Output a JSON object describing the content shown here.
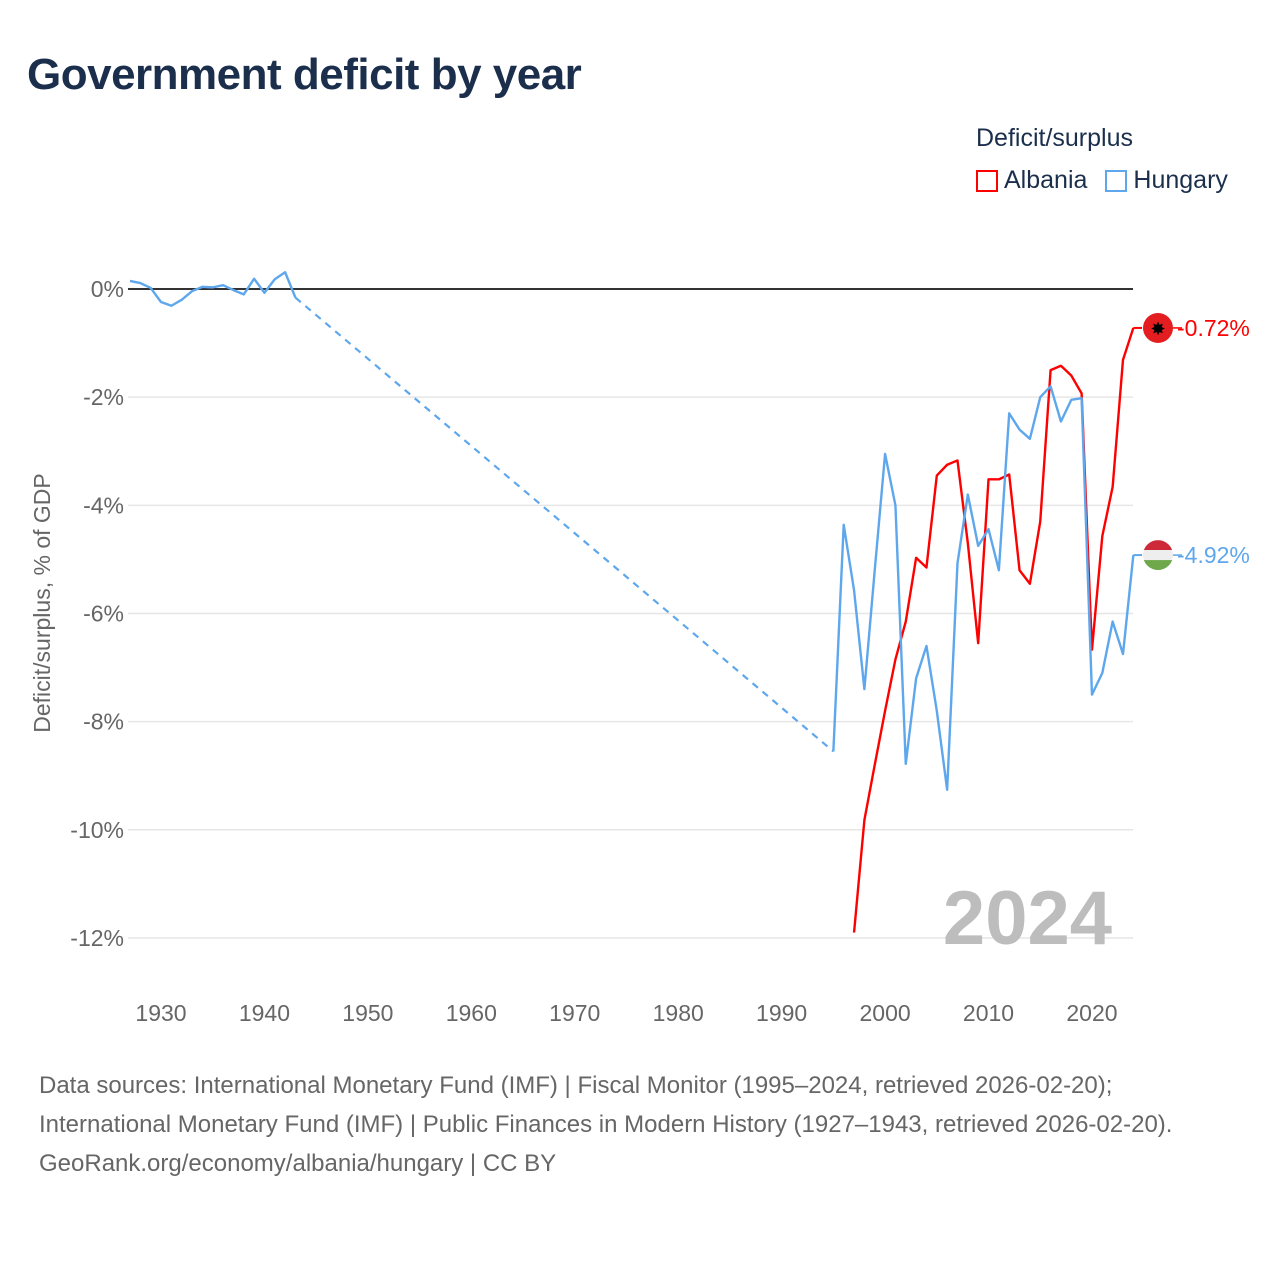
{
  "title": "Government deficit by year",
  "legend": {
    "title": "Deficit/surplus",
    "items": [
      {
        "name": "Albania",
        "color": "#ff0000"
      },
      {
        "name": "Hungary",
        "color": "#5ea7ec"
      }
    ]
  },
  "chart_data": {
    "type": "line",
    "title": "Government deficit by year",
    "xlabel": "",
    "ylabel": "Deficit/surplus, % of GDP",
    "xlim": [
      1927,
      2024
    ],
    "ylim": [
      -13,
      0.6
    ],
    "x_ticks": [
      1930,
      1940,
      1950,
      1960,
      1970,
      1980,
      1990,
      2000,
      2010,
      2020
    ],
    "y_ticks": [
      0,
      -2,
      -4,
      -6,
      -8,
      -10,
      -12
    ],
    "y_tick_labels": [
      "0%",
      "-2%",
      "-4%",
      "-6%",
      "-8%",
      "-10%",
      "-12%"
    ],
    "grid": true,
    "legend_position": "top-right",
    "year_watermark": "2024",
    "series": [
      {
        "name": "Albania",
        "color": "#ff0000",
        "end_label": "-0.72%",
        "x": [
          1997,
          1998,
          1999,
          2000,
          2001,
          2002,
          2003,
          2004,
          2005,
          2006,
          2007,
          2008,
          2009,
          2010,
          2011,
          2012,
          2013,
          2014,
          2015,
          2016,
          2017,
          2018,
          2019,
          2020,
          2021,
          2022,
          2023,
          2024
        ],
        "y": [
          -11.9,
          -9.82,
          -8.8,
          -7.8,
          -6.85,
          -6.15,
          -4.97,
          -5.15,
          -3.45,
          -3.25,
          -3.17,
          -4.7,
          -6.55,
          -3.52,
          -3.52,
          -3.43,
          -5.2,
          -5.45,
          -4.3,
          -1.5,
          -1.42,
          -1.6,
          -1.93,
          -6.67,
          -4.57,
          -3.66,
          -1.31,
          -0.72
        ]
      },
      {
        "name": "Hungary",
        "color": "#5ea7ec",
        "end_label": "-4.92%",
        "gap_dashed": [
          1943,
          1995
        ],
        "x": [
          1927,
          1928,
          1929,
          1930,
          1931,
          1932,
          1933,
          1934,
          1935,
          1936,
          1937,
          1938,
          1939,
          1940,
          1941,
          1942,
          1943,
          1995,
          1996,
          1997,
          1998,
          1999,
          2000,
          2001,
          2002,
          2003,
          2004,
          2005,
          2006,
          2007,
          2008,
          2009,
          2010,
          2011,
          2012,
          2013,
          2014,
          2015,
          2016,
          2017,
          2018,
          2019,
          2020,
          2021,
          2022,
          2023,
          2024
        ],
        "y": [
          0.15,
          0.11,
          0.02,
          -0.24,
          -0.31,
          -0.2,
          -0.04,
          0.04,
          0.03,
          0.07,
          -0.02,
          -0.1,
          0.19,
          -0.07,
          0.18,
          0.31,
          -0.16,
          -8.55,
          -4.36,
          -5.57,
          -7.4,
          -5.2,
          -3.05,
          -4.0,
          -8.78,
          -7.2,
          -6.6,
          -7.8,
          -9.26,
          -5.07,
          -3.8,
          -4.75,
          -4.44,
          -5.2,
          -2.3,
          -2.6,
          -2.77,
          -2.0,
          -1.8,
          -2.45,
          -2.05,
          -2.02,
          -7.5,
          -7.1,
          -6.15,
          -6.75,
          -4.92
        ]
      }
    ]
  },
  "footer": {
    "sources": "Data sources: International Monetary Fund (IMF) | Fiscal Monitor (1995–2024, retrieved 2026-02-20); International Monetary Fund (IMF) | Public Finances in Modern History (1927–1943, retrieved 2026-02-20).",
    "credit": "GeoRank.org/economy/albania/hungary | CC BY"
  }
}
